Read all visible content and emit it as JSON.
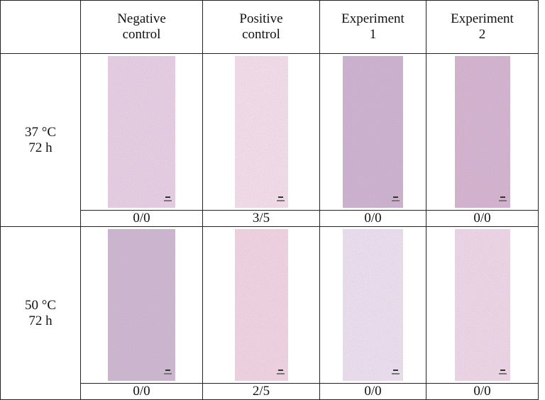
{
  "table": {
    "header": [
      [
        "Negative",
        "control"
      ],
      [
        "Positive",
        "control"
      ],
      [
        "Experiment",
        "1"
      ],
      [
        "Experiment",
        "2"
      ]
    ],
    "rows": [
      {
        "label": [
          "37 °C",
          "72 h"
        ],
        "scores": [
          "0/0",
          "3/5",
          "0/0",
          "0/0"
        ]
      },
      {
        "label": [
          "50 °C",
          "72 h"
        ],
        "scores": [
          "0/0",
          "2/5",
          "0/0",
          "0/0"
        ]
      }
    ]
  }
}
